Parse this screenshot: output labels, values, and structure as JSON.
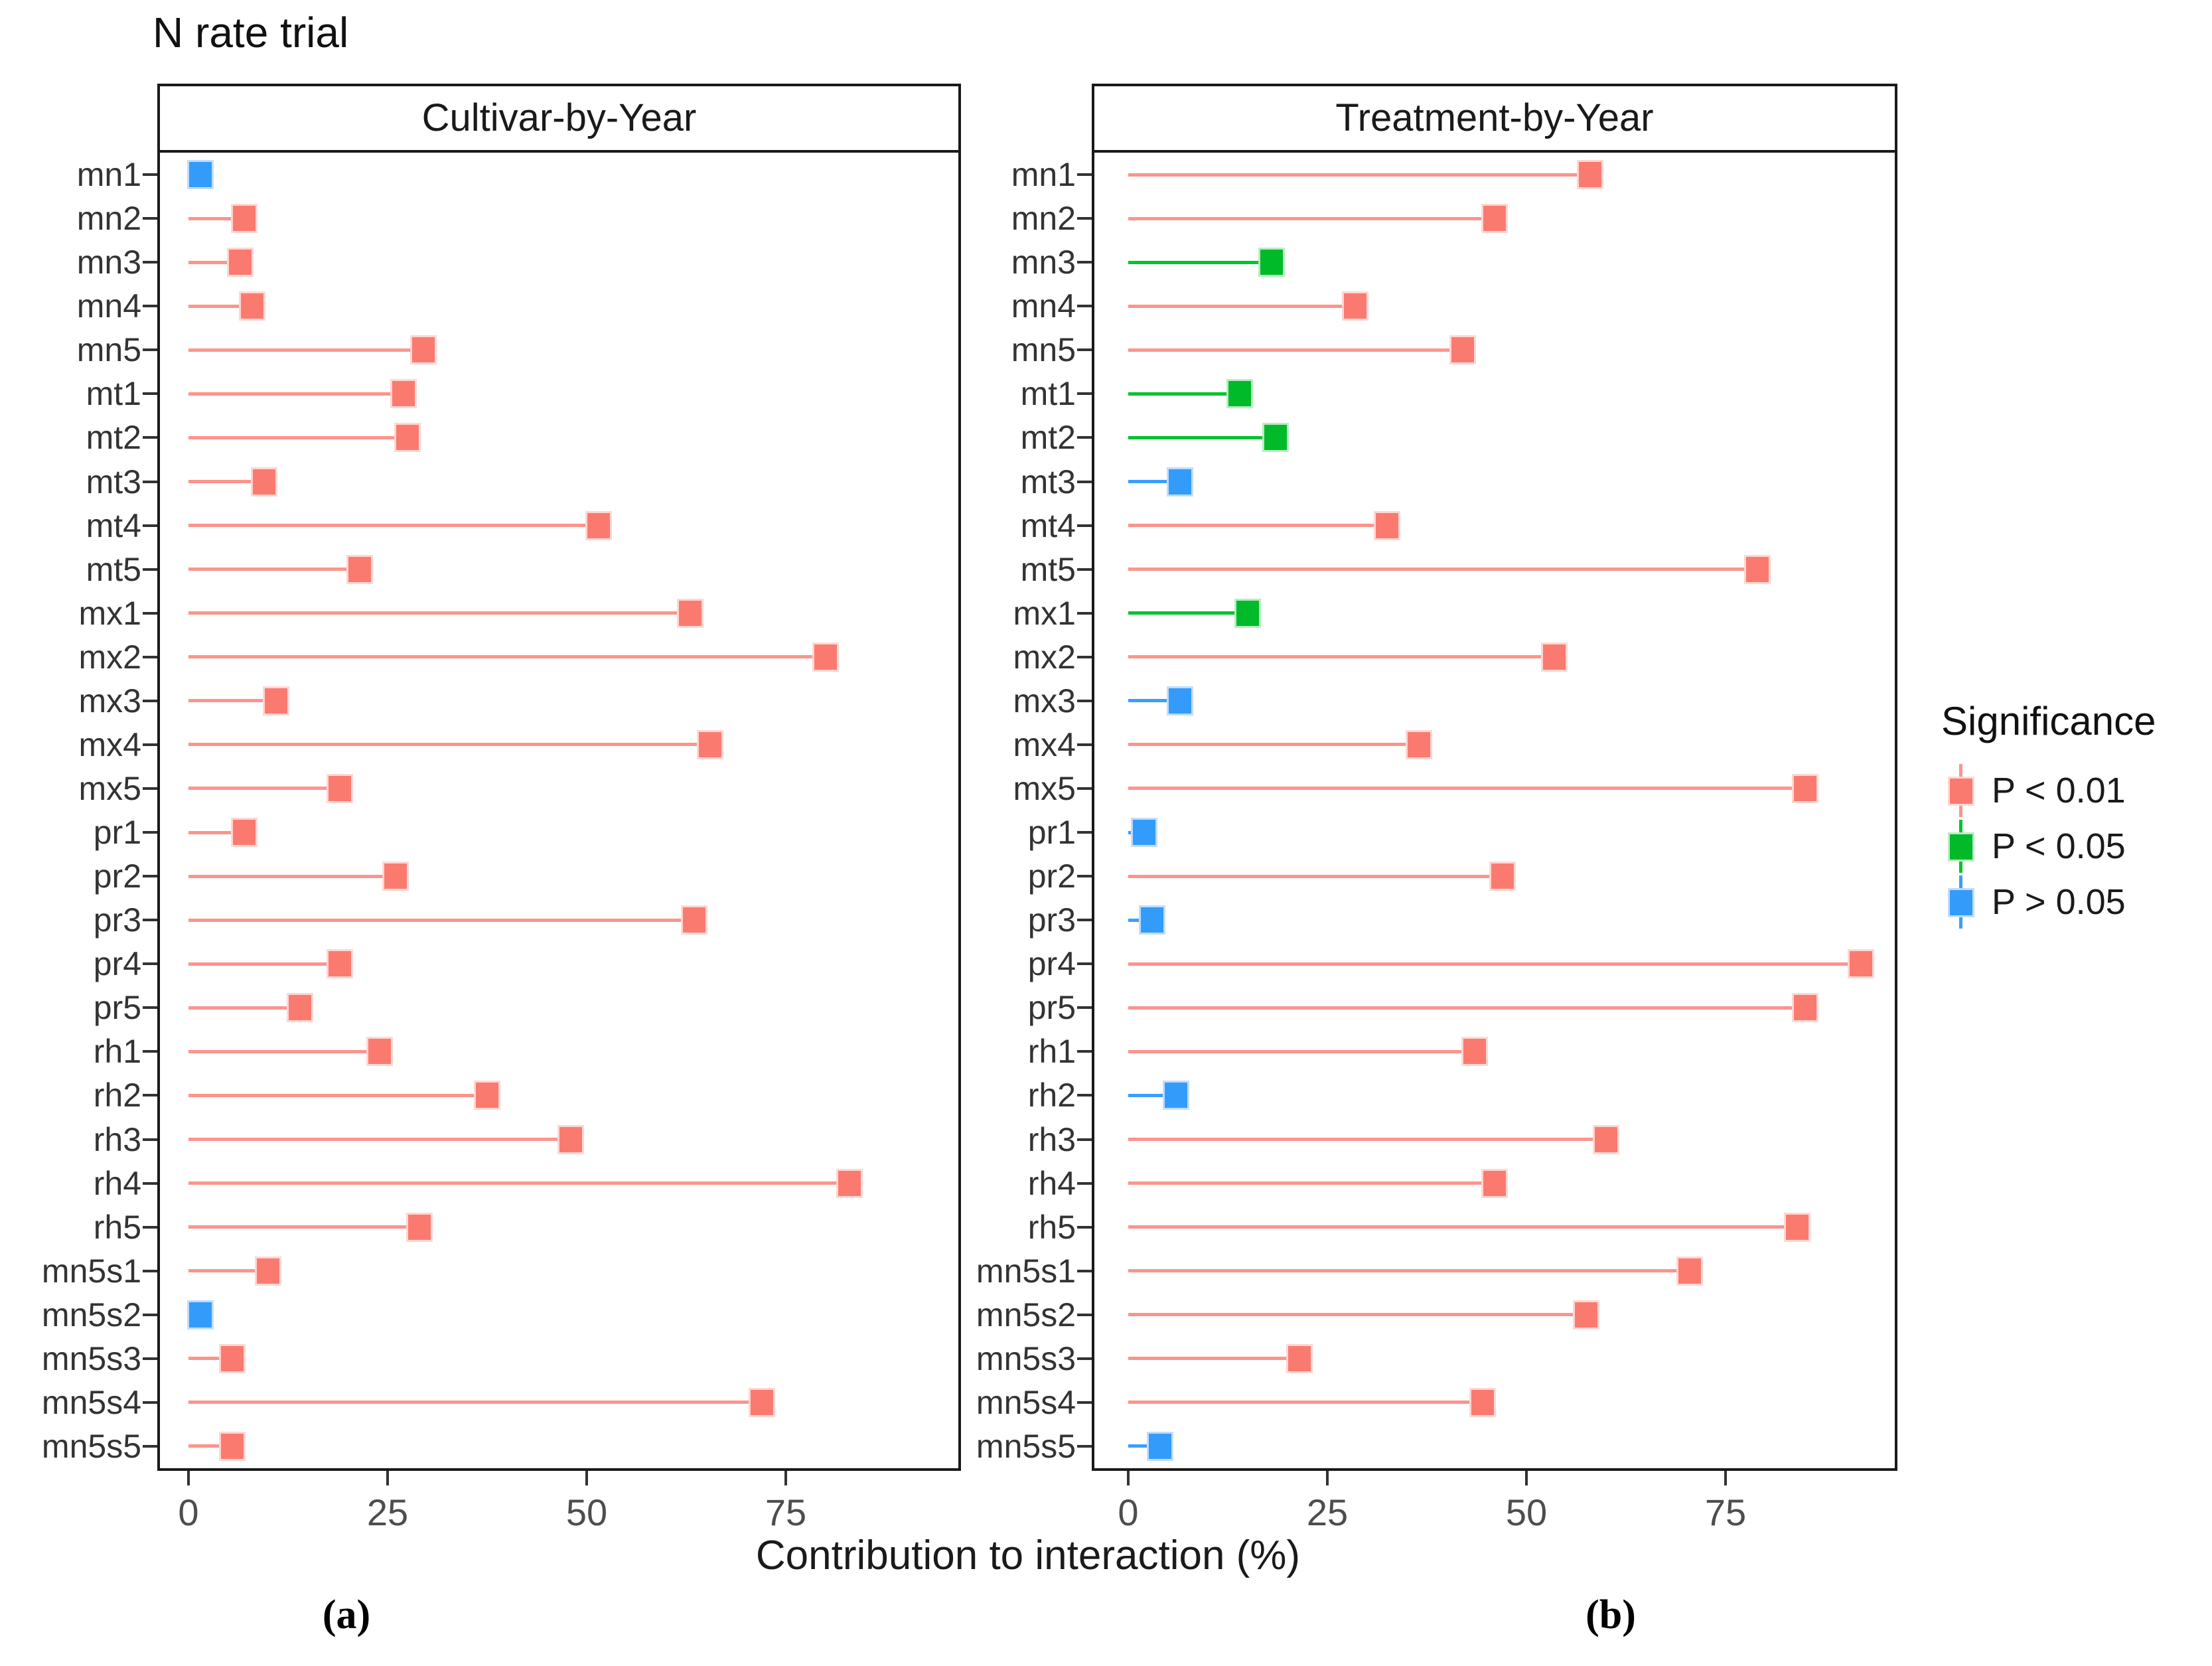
{
  "title": "N rate trial",
  "panels": [
    {
      "id": "a",
      "strip_label": "Cultivar-by-Year",
      "caption": "(a)"
    },
    {
      "id": "b",
      "strip_label": "Treatment-by-Year",
      "caption": "(b)"
    }
  ],
  "axis": {
    "xlabel": "Contribution to interaction (%)",
    "xticks": [
      0,
      25,
      50,
      75
    ]
  },
  "legend": {
    "title": "Significance",
    "entries": [
      {
        "label": "P < 0.01",
        "sig": "p<0.01",
        "fill": "#fb7a6f",
        "stick": "#fc948c",
        "edge": "#fed7d3"
      },
      {
        "label": "P < 0.05",
        "sig": "p<0.05",
        "fill": "#00ba29",
        "stick": "#00c32e",
        "edge": "#baecc3"
      },
      {
        "label": "P > 0.05",
        "sig": "p>0.05",
        "fill": "#339cfa",
        "stick": "#3b9efd",
        "edge": "#c3dcfc"
      }
    ]
  },
  "chart_data": {
    "type": "bar",
    "variant": "horizontal-lollipop",
    "title": "N rate trial",
    "xlabel": "Contribution to interaction (%)",
    "xlim": [
      0,
      96
    ],
    "xticks": [
      0,
      25,
      50,
      75
    ],
    "grid": false,
    "legend_position": "right",
    "categories": [
      "mn1",
      "mn2",
      "mn3",
      "mn4",
      "mn5",
      "mt1",
      "mt2",
      "mt3",
      "mt4",
      "mt5",
      "mx1",
      "mx2",
      "mx3",
      "mx4",
      "mx5",
      "pr1",
      "pr2",
      "pr3",
      "pr4",
      "pr5",
      "rh1",
      "rh2",
      "rh3",
      "rh4",
      "rh5",
      "mn5s1",
      "mn5s2",
      "mn5s3",
      "mn5s4",
      "mn5s5"
    ],
    "series": [
      {
        "name": "Cultivar-by-Year",
        "values": [
          1.5,
          7,
          6.5,
          8,
          29.5,
          27,
          27.5,
          9.5,
          51.5,
          21.5,
          63,
          80,
          11,
          65.5,
          19,
          7,
          26,
          63.5,
          19,
          14,
          24,
          37.5,
          48,
          83,
          29,
          10,
          1.5,
          5.5,
          72,
          5.5
        ],
        "significance": [
          "p>0.05",
          "p<0.01",
          "p<0.01",
          "p<0.01",
          "p<0.01",
          "p<0.01",
          "p<0.01",
          "p<0.01",
          "p<0.01",
          "p<0.01",
          "p<0.01",
          "p<0.01",
          "p<0.01",
          "p<0.01",
          "p<0.01",
          "p<0.01",
          "p<0.01",
          "p<0.01",
          "p<0.01",
          "p<0.01",
          "p<0.01",
          "p<0.01",
          "p<0.01",
          "p<0.01",
          "p<0.01",
          "p<0.01",
          "p>0.05",
          "p<0.01",
          "p<0.01",
          "p<0.01"
        ]
      },
      {
        "name": "Treatment-by-Year",
        "values": [
          58,
          46,
          18,
          28.5,
          42,
          14,
          18.5,
          6.5,
          32.5,
          79,
          15,
          53.5,
          6.5,
          36.5,
          85,
          2,
          47,
          3,
          92,
          85,
          43.5,
          6,
          60,
          46,
          84,
          70.5,
          57.5,
          21.5,
          44.5,
          4
        ],
        "significance": [
          "p<0.01",
          "p<0.01",
          "p<0.05",
          "p<0.01",
          "p<0.01",
          "p<0.05",
          "p<0.05",
          "p>0.05",
          "p<0.01",
          "p<0.01",
          "p<0.05",
          "p<0.01",
          "p>0.05",
          "p<0.01",
          "p<0.01",
          "p>0.05",
          "p<0.01",
          "p>0.05",
          "p<0.01",
          "p<0.01",
          "p<0.01",
          "p>0.05",
          "p<0.01",
          "p<0.01",
          "p<0.01",
          "p<0.01",
          "p<0.01",
          "p<0.01",
          "p<0.01",
          "p>0.05"
        ]
      }
    ],
    "significance_colors": {
      "p<0.01": "#fb7a6f",
      "p<0.05": "#00ba29",
      "p>0.05": "#339cfa"
    }
  }
}
